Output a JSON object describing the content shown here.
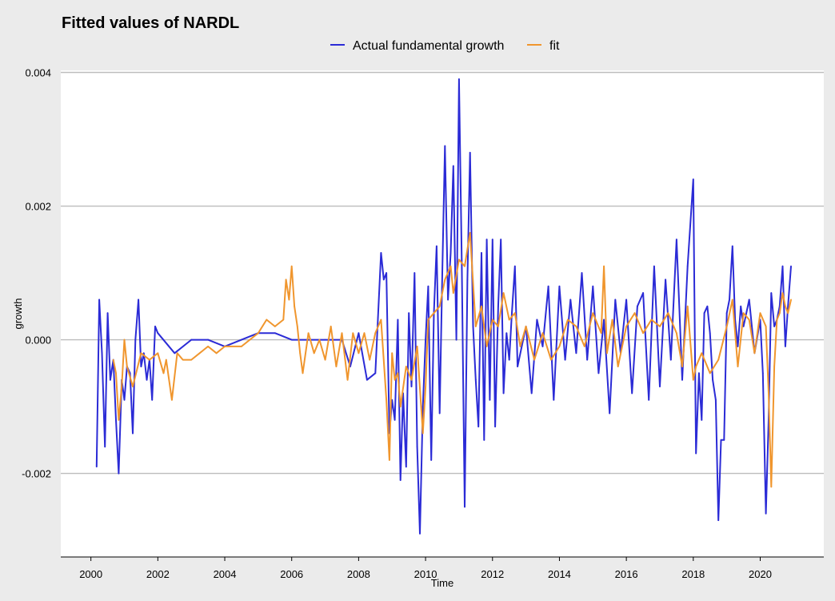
{
  "chart_data": {
    "type": "line",
    "title": "Fitted values of NARDL",
    "xlabel": "Time",
    "ylabel": "growth",
    "xlim": [
      1999.1,
      2021.9
    ],
    "ylim": [
      -0.00325,
      0.00403
    ],
    "x_ticks": [
      2000,
      2002,
      2004,
      2006,
      2008,
      2010,
      2012,
      2014,
      2016,
      2018,
      2020
    ],
    "x_tick_labels": [
      "2000",
      "2002",
      "2004",
      "2006",
      "2008",
      "2010",
      "2012",
      "2014",
      "2016",
      "2018",
      "2020"
    ],
    "y_ticks": [
      -0.002,
      0.0,
      0.002,
      0.004
    ],
    "y_tick_labels": [
      "-0.002",
      "0.000",
      "0.002",
      "0.004"
    ],
    "grid": "horizontal",
    "legend_position": "top",
    "series": [
      {
        "name": "Actual fundamental growth",
        "color": "#2b2bd6",
        "x": [
          2000.17,
          2000.25,
          2000.33,
          2000.42,
          2000.5,
          2000.58,
          2000.67,
          2000.75,
          2000.83,
          2000.92,
          2001.0,
          2001.08,
          2001.17,
          2001.25,
          2001.33,
          2001.42,
          2001.5,
          2001.58,
          2001.67,
          2001.75,
          2001.83,
          2001.92,
          2002.0,
          2002.5,
          2003.0,
          2003.5,
          2004.0,
          2004.5,
          2005.0,
          2005.5,
          2006.0,
          2006.5,
          2007.0,
          2007.5,
          2007.75,
          2008.0,
          2008.25,
          2008.5,
          2008.67,
          2008.75,
          2008.83,
          2008.92,
          2009.0,
          2009.08,
          2009.17,
          2009.25,
          2009.33,
          2009.42,
          2009.5,
          2009.58,
          2009.67,
          2009.75,
          2009.83,
          2009.92,
          2010.0,
          2010.08,
          2010.17,
          2010.25,
          2010.33,
          2010.42,
          2010.5,
          2010.58,
          2010.67,
          2010.75,
          2010.83,
          2010.92,
          2011.0,
          2011.08,
          2011.17,
          2011.25,
          2011.33,
          2011.42,
          2011.5,
          2011.58,
          2011.67,
          2011.75,
          2011.83,
          2011.92,
          2012.0,
          2012.08,
          2012.17,
          2012.25,
          2012.33,
          2012.42,
          2012.5,
          2012.58,
          2012.67,
          2012.75,
          2013.0,
          2013.17,
          2013.33,
          2013.5,
          2013.67,
          2013.83,
          2014.0,
          2014.17,
          2014.33,
          2014.5,
          2014.67,
          2014.83,
          2015.0,
          2015.17,
          2015.33,
          2015.5,
          2015.67,
          2015.83,
          2016.0,
          2016.17,
          2016.33,
          2016.5,
          2016.67,
          2016.83,
          2017.0,
          2017.17,
          2017.33,
          2017.5,
          2017.67,
          2017.83,
          2018.0,
          2018.08,
          2018.17,
          2018.25,
          2018.33,
          2018.42,
          2018.5,
          2018.58,
          2018.67,
          2018.75,
          2018.83,
          2018.92,
          2019.0,
          2019.08,
          2019.17,
          2019.25,
          2019.33,
          2019.42,
          2019.5,
          2019.67,
          2019.83,
          2020.0,
          2020.08,
          2020.17,
          2020.25,
          2020.33,
          2020.42,
          2020.5,
          2020.58,
          2020.67,
          2020.75,
          2020.83,
          2020.92
        ],
        "y": [
          -0.0019,
          0.0006,
          -0.0002,
          -0.0016,
          0.0004,
          -0.0006,
          -0.0003,
          -0.0012,
          -0.002,
          -0.0006,
          -0.0009,
          -0.0004,
          -0.0005,
          -0.0014,
          0.0,
          0.0006,
          -0.0004,
          -0.0002,
          -0.0006,
          -0.0003,
          -0.0009,
          0.0002,
          0.0001,
          -0.0002,
          0.0,
          0.0,
          -0.0001,
          0.0,
          0.0001,
          0.0001,
          0.0,
          0.0,
          0.0,
          0.0,
          -0.0004,
          0.0001,
          -0.0006,
          -0.0005,
          0.0013,
          0.0009,
          0.001,
          -0.0014,
          -0.0009,
          -0.0012,
          0.0003,
          -0.0021,
          -0.0008,
          -0.0019,
          0.0004,
          -0.0007,
          0.001,
          -0.0016,
          -0.0029,
          -0.001,
          0.0,
          0.0008,
          -0.0018,
          0.0004,
          0.0014,
          -0.0011,
          0.001,
          0.0029,
          0.0006,
          0.0013,
          0.0026,
          0.0,
          0.0039,
          0.0012,
          -0.0025,
          0.0009,
          0.0028,
          0.0002,
          -0.0006,
          -0.0013,
          0.0013,
          -0.0015,
          0.0015,
          -0.0009,
          0.0015,
          -0.0013,
          0.0005,
          0.0015,
          -0.0008,
          0.0001,
          -0.0003,
          0.0004,
          0.0011,
          -0.0004,
          0.0002,
          -0.0008,
          0.0003,
          -0.0001,
          0.0008,
          -0.0009,
          0.0008,
          -0.0003,
          0.0006,
          -0.0002,
          0.001,
          -0.0003,
          0.0008,
          -0.0005,
          0.0003,
          -0.0011,
          0.0006,
          -0.0002,
          0.0006,
          -0.0008,
          0.0005,
          0.0007,
          -0.0009,
          0.0011,
          -0.0007,
          0.0009,
          -0.0003,
          0.0015,
          -0.0006,
          0.0011,
          0.0024,
          -0.0017,
          -0.0005,
          -0.0012,
          0.0004,
          0.0005,
          0.0001,
          -0.0006,
          -0.0009,
          -0.0027,
          -0.0015,
          -0.0015,
          0.0004,
          0.0006,
          0.0014,
          0.0003,
          -0.0001,
          0.0005,
          0.0002,
          0.0006,
          -0.0002,
          0.0003,
          -0.0005,
          -0.0026,
          -0.0012,
          0.0007,
          0.0002,
          0.0003,
          0.0005,
          0.0011,
          -0.0001,
          0.0005,
          0.0011
        ]
      },
      {
        "name": "fit",
        "color": "#f0962e",
        "x": [
          2000.67,
          2000.75,
          2000.83,
          2000.92,
          2001.0,
          2001.08,
          2001.25,
          2001.5,
          2001.75,
          2002.0,
          2002.17,
          2002.25,
          2002.42,
          2002.58,
          2002.75,
          2003.0,
          2003.25,
          2003.5,
          2003.75,
          2004.0,
          2004.5,
          2005.0,
          2005.25,
          2005.5,
          2005.75,
          2005.83,
          2005.92,
          2006.0,
          2006.08,
          2006.17,
          2006.25,
          2006.33,
          2006.5,
          2006.67,
          2006.83,
          2007.0,
          2007.17,
          2007.33,
          2007.5,
          2007.67,
          2007.83,
          2008.0,
          2008.17,
          2008.33,
          2008.5,
          2008.67,
          2008.83,
          2008.92,
          2009.0,
          2009.08,
          2009.17,
          2009.25,
          2009.42,
          2009.58,
          2009.75,
          2009.92,
          2010.0,
          2010.08,
          2010.25,
          2010.42,
          2010.58,
          2010.75,
          2010.83,
          2011.0,
          2011.17,
          2011.33,
          2011.5,
          2011.67,
          2011.83,
          2012.0,
          2012.17,
          2012.33,
          2012.5,
          2012.67,
          2012.83,
          2013.0,
          2013.25,
          2013.5,
          2013.75,
          2014.0,
          2014.25,
          2014.5,
          2014.75,
          2015.0,
          2015.25,
          2015.33,
          2015.42,
          2015.58,
          2015.75,
          2016.0,
          2016.25,
          2016.5,
          2016.75,
          2017.0,
          2017.25,
          2017.5,
          2017.67,
          2017.83,
          2018.0,
          2018.08,
          2018.25,
          2018.5,
          2018.75,
          2019.0,
          2019.17,
          2019.33,
          2019.5,
          2019.67,
          2019.83,
          2020.0,
          2020.17,
          2020.25,
          2020.33,
          2020.42,
          2020.5,
          2020.58,
          2020.67,
          2020.75,
          2020.83,
          2020.92
        ],
        "y": [
          -0.0003,
          -0.0005,
          -0.0012,
          -0.0007,
          0.0,
          -0.0004,
          -0.0007,
          -0.0002,
          -0.0003,
          -0.0002,
          -0.0005,
          -0.0003,
          -0.0009,
          -0.0002,
          -0.0003,
          -0.0003,
          -0.0002,
          -0.0001,
          -0.0002,
          -0.0001,
          -0.0001,
          0.0001,
          0.0003,
          0.0002,
          0.0003,
          0.0009,
          0.0006,
          0.0011,
          0.0005,
          0.0002,
          -0.0002,
          -0.0005,
          0.0001,
          -0.0002,
          0.0,
          -0.0003,
          0.0002,
          -0.0004,
          0.0001,
          -0.0006,
          0.0001,
          -0.0002,
          0.0001,
          -0.0003,
          0.0001,
          0.0003,
          -0.0009,
          -0.0018,
          -0.0002,
          -0.0006,
          -0.0005,
          -0.001,
          -0.0004,
          -0.0006,
          -0.0001,
          -0.0014,
          -0.0007,
          0.0003,
          0.0004,
          0.0005,
          0.0009,
          0.0011,
          0.0007,
          0.0012,
          0.0011,
          0.0016,
          0.0002,
          0.0005,
          -0.0001,
          0.0003,
          0.0002,
          0.0007,
          0.0003,
          0.0004,
          -0.0001,
          0.0002,
          -0.0003,
          0.0001,
          -0.0003,
          -0.0001,
          0.0003,
          0.0002,
          -0.0001,
          0.0004,
          0.0001,
          0.0011,
          -0.0002,
          0.0003,
          -0.0004,
          0.0002,
          0.0004,
          0.0001,
          0.0003,
          0.0002,
          0.0004,
          0.0001,
          -0.0004,
          0.0005,
          -0.0006,
          -0.0004,
          -0.0002,
          -0.0005,
          -0.0003,
          0.0002,
          0.0006,
          -0.0004,
          0.0004,
          0.0003,
          -0.0002,
          0.0004,
          0.0002,
          -0.0008,
          -0.0022,
          -0.0004,
          0.0003,
          0.0004,
          0.0007,
          0.0005,
          0.0004,
          0.0006
        ]
      }
    ]
  }
}
